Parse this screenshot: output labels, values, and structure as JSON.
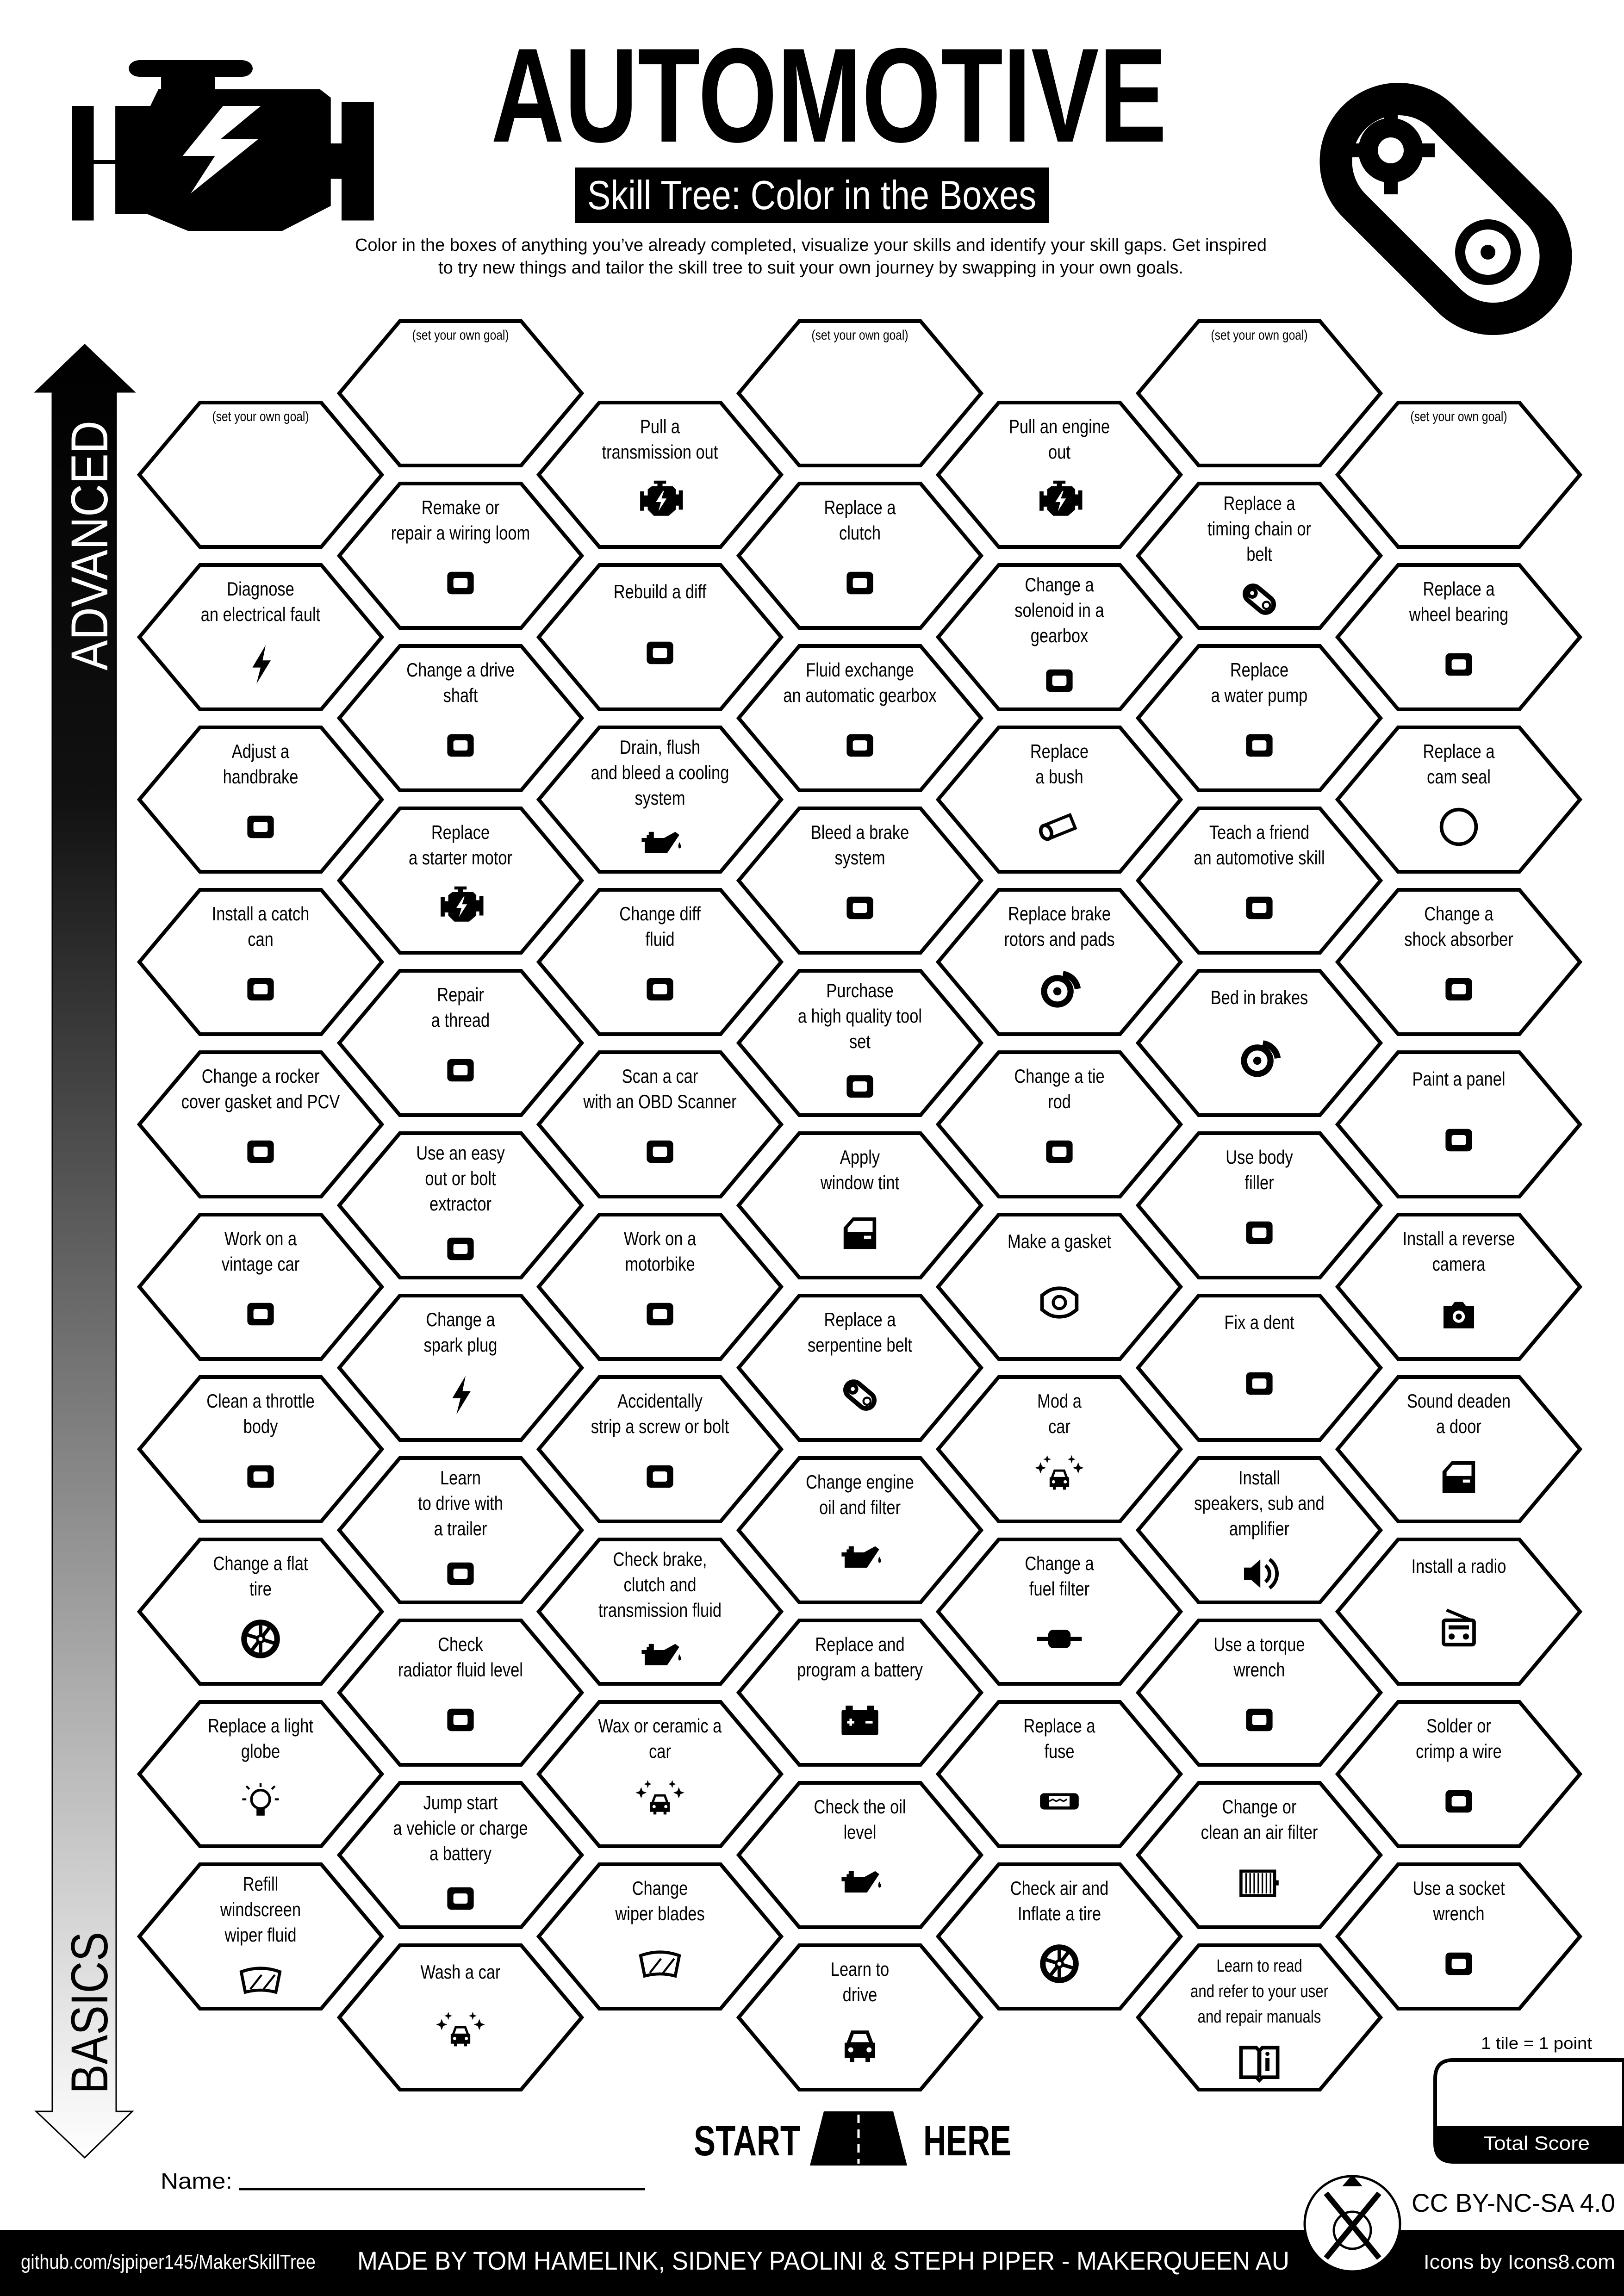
{
  "header": {
    "title": "AUTOMOTIVE",
    "subtitle": "Skill Tree: Color in the Boxes",
    "description": [
      "Color in the boxes of anything you’ve already completed, visualize your skills and identify your skill gaps.  Get inspired",
      "to try new things and tailor the skill tree to suit your own journey by swapping in your own goals."
    ],
    "left_icon": "engine-icon",
    "right_icon": "timing-belt-icon"
  },
  "axis": {
    "top_label": "ADVANCED",
    "bottom_label": "BASICS"
  },
  "colors": {
    "ink": "#000000",
    "paper": "#ffffff"
  },
  "columns": [
    [
      {
        "goal": "(set your own goal)"
      },
      {
        "lines": [
          "Diagnose",
          "an electrical fault"
        ],
        "icon": "lightning-bolt"
      },
      {
        "lines": [
          "Adjust a",
          "handbrake"
        ],
        "icon": "handbrake"
      },
      {
        "lines": [
          "Install a catch",
          "can"
        ],
        "icon": "catch-can"
      },
      {
        "lines": [
          "Change a rocker",
          "cover gasket and PCV"
        ],
        "icon": "rocker-cover"
      },
      {
        "lines": [
          "Work on a",
          "vintage car"
        ],
        "icon": "vintage-car"
      },
      {
        "lines": [
          "Clean a throttle",
          "body"
        ],
        "icon": "throttle-body"
      },
      {
        "lines": [
          "Change a flat",
          "tire"
        ],
        "icon": "tire"
      },
      {
        "lines": [
          "Replace a light",
          "globe"
        ],
        "icon": "light-bulb"
      },
      {
        "lines": [
          "Refill",
          "windscreen",
          "wiper fluid"
        ],
        "icon": "windscreen"
      }
    ],
    [
      {
        "goal": "(set your own goal)"
      },
      {
        "lines": [
          "Remake or",
          "repair a wiring loom"
        ],
        "icon": "wiring-connector"
      },
      {
        "lines": [
          "Change a drive",
          "shaft"
        ],
        "icon": "drive-shaft"
      },
      {
        "lines": [
          "Replace",
          "a starter motor"
        ],
        "icon": "engine"
      },
      {
        "lines": [
          "Repair",
          "a thread"
        ],
        "icon": "bolt-thread"
      },
      {
        "lines": [
          "Use an easy",
          "out or bolt",
          "extractor"
        ],
        "icon": "extractor"
      },
      {
        "lines": [
          "Change a",
          "spark plug"
        ],
        "icon": "lightning-bolt"
      },
      {
        "lines": [
          "Learn",
          "to drive with",
          "a trailer"
        ],
        "icon": "trailer"
      },
      {
        "lines": [
          "Check",
          "radiator fluid level"
        ],
        "icon": "radiator"
      },
      {
        "lines": [
          "Jump start",
          "a vehicle or charge",
          "a battery"
        ],
        "icon": "jumper-cables"
      },
      {
        "lines": [
          "Wash a car"
        ],
        "icon": "car-sparkle"
      }
    ],
    [
      {
        "lines": [
          "Pull a",
          "transmission out"
        ],
        "icon": "engine"
      },
      {
        "lines": [
          "Rebuild a diff"
        ],
        "icon": "differential"
      },
      {
        "lines": [
          "Drain, flush",
          "and bleed a cooling",
          "system"
        ],
        "icon": "oil-can"
      },
      {
        "lines": [
          "Change diff",
          "fluid"
        ],
        "icon": "differential"
      },
      {
        "lines": [
          "Scan a car",
          "with an OBD Scanner"
        ],
        "icon": "obd-scanner"
      },
      {
        "lines": [
          "Work on a",
          "motorbike"
        ],
        "icon": "motorbike"
      },
      {
        "lines": [
          "Accidentally",
          "strip a screw or bolt"
        ],
        "icon": "facepalm"
      },
      {
        "lines": [
          "Check brake,",
          "clutch and",
          "transmission fluid"
        ],
        "icon": "oil-can"
      },
      {
        "lines": [
          "Wax or ceramic a",
          "car"
        ],
        "icon": "car-sparkle"
      },
      {
        "lines": [
          "Change",
          "wiper blades"
        ],
        "icon": "windscreen"
      }
    ],
    [
      {
        "goal": "(set your own goal)"
      },
      {
        "lines": [
          "Replace a",
          "clutch"
        ],
        "icon": "clutch-plate"
      },
      {
        "lines": [
          "Fluid exchange",
          "an automatic gearbox"
        ],
        "icon": "gear-shifter"
      },
      {
        "lines": [
          "Bleed a brake",
          "system"
        ],
        "icon": "brake-bleeder"
      },
      {
        "lines": [
          "Purchase",
          "a high quality tool",
          "set"
        ],
        "icon": "toolbox"
      },
      {
        "lines": [
          "Apply",
          "window tint"
        ],
        "icon": "car-door"
      },
      {
        "lines": [
          "Replace a",
          "serpentine belt"
        ],
        "icon": "gear-belt"
      },
      {
        "lines": [
          "Change engine",
          "oil and filter"
        ],
        "icon": "oil-can"
      },
      {
        "lines": [
          "Replace and",
          "program a battery"
        ],
        "icon": "battery"
      },
      {
        "lines": [
          "Check the oil",
          "level"
        ],
        "icon": "oil-can"
      },
      {
        "lines": [
          "Learn to",
          "drive"
        ],
        "icon": "car"
      }
    ],
    [
      {
        "lines": [
          "Pull an engine",
          "out"
        ],
        "icon": "engine"
      },
      {
        "lines": [
          "Change a",
          "solenoid in a",
          "gearbox"
        ],
        "icon": "valve-body"
      },
      {
        "lines": [
          "Replace",
          "a bush"
        ],
        "icon": "cylinder"
      },
      {
        "lines": [
          "Replace brake",
          "rotors and pads"
        ],
        "icon": "brake-disc"
      },
      {
        "lines": [
          "Change a tie",
          "rod"
        ],
        "icon": "tie-rod"
      },
      {
        "lines": [
          "Make a gasket"
        ],
        "icon": "gasket"
      },
      {
        "lines": [
          "Mod a",
          "car"
        ],
        "icon": "car-sparkle"
      },
      {
        "lines": [
          "Change a",
          "fuel filter"
        ],
        "icon": "fuel-filter"
      },
      {
        "lines": [
          "Replace a",
          "fuse"
        ],
        "icon": "fuse"
      },
      {
        "lines": [
          "Check air and",
          "Inflate a tire"
        ],
        "icon": "tire"
      }
    ],
    [
      {
        "goal": "(set your own goal)"
      },
      {
        "lines": [
          "Replace a",
          "timing chain or",
          "belt"
        ],
        "icon": "gear-belt"
      },
      {
        "lines": [
          "Replace",
          "a water pump"
        ],
        "icon": "water-pump"
      },
      {
        "lines": [
          "Teach a friend",
          "an automotive skill"
        ],
        "icon": "teachers"
      },
      {
        "lines": [
          "Bed in brakes"
        ],
        "icon": "brake-disc"
      },
      {
        "lines": [
          "Use body",
          "filler"
        ],
        "icon": "filler-tub"
      },
      {
        "lines": [
          "Fix a dent"
        ],
        "icon": "hammer"
      },
      {
        "lines": [
          "Install",
          "speakers, sub and",
          "amplifier"
        ],
        "icon": "speaker"
      },
      {
        "lines": [
          "Use a torque",
          "wrench"
        ],
        "icon": "torque-wrench"
      },
      {
        "lines": [
          "Change or",
          "clean an air filter"
        ],
        "icon": "air-filter"
      },
      {
        "lines": [
          "Learn to read",
          "and refer to your user",
          "and repair manuals"
        ],
        "icon": "manual-book"
      }
    ],
    [
      {
        "goal": "(set your own goal)"
      },
      {
        "lines": [
          "Replace a",
          "wheel bearing"
        ],
        "icon": "bearing"
      },
      {
        "lines": [
          "Replace a",
          "cam seal"
        ],
        "icon": "ring"
      },
      {
        "lines": [
          "Change a",
          "shock absorber"
        ],
        "icon": "shock-absorber"
      },
      {
        "lines": [
          "Paint a panel"
        ],
        "icon": "spray-gun"
      },
      {
        "lines": [
          "Install a reverse",
          "camera"
        ],
        "icon": "camera"
      },
      {
        "lines": [
          "Sound deaden",
          "a door"
        ],
        "icon": "car-door"
      },
      {
        "lines": [
          "Install a radio"
        ],
        "icon": "radio"
      },
      {
        "lines": [
          "Solder or",
          "crimp a wire"
        ],
        "icon": "soldering-iron"
      },
      {
        "lines": [
          "Use a socket",
          "wrench"
        ],
        "icon": "ratchet"
      }
    ]
  ],
  "start": {
    "left": "START",
    "right": "HERE",
    "icon": "road-icon"
  },
  "score": {
    "note": "1 tile = 1 point",
    "label": "Total Score"
  },
  "name_label": "Name:",
  "license": "CC BY-NC-SA 4.0",
  "footer": {
    "github": "github.com/sjpiper145/MakerSkillTree",
    "credits": "MADE BY TOM HAMELINK, SIDNEY PAOLINI & STEPH PIPER  -  MAKERQUEEN AU",
    "icons_credit": "Icons by Icons8.com",
    "logo": "maker-skill-tree-logo"
  }
}
